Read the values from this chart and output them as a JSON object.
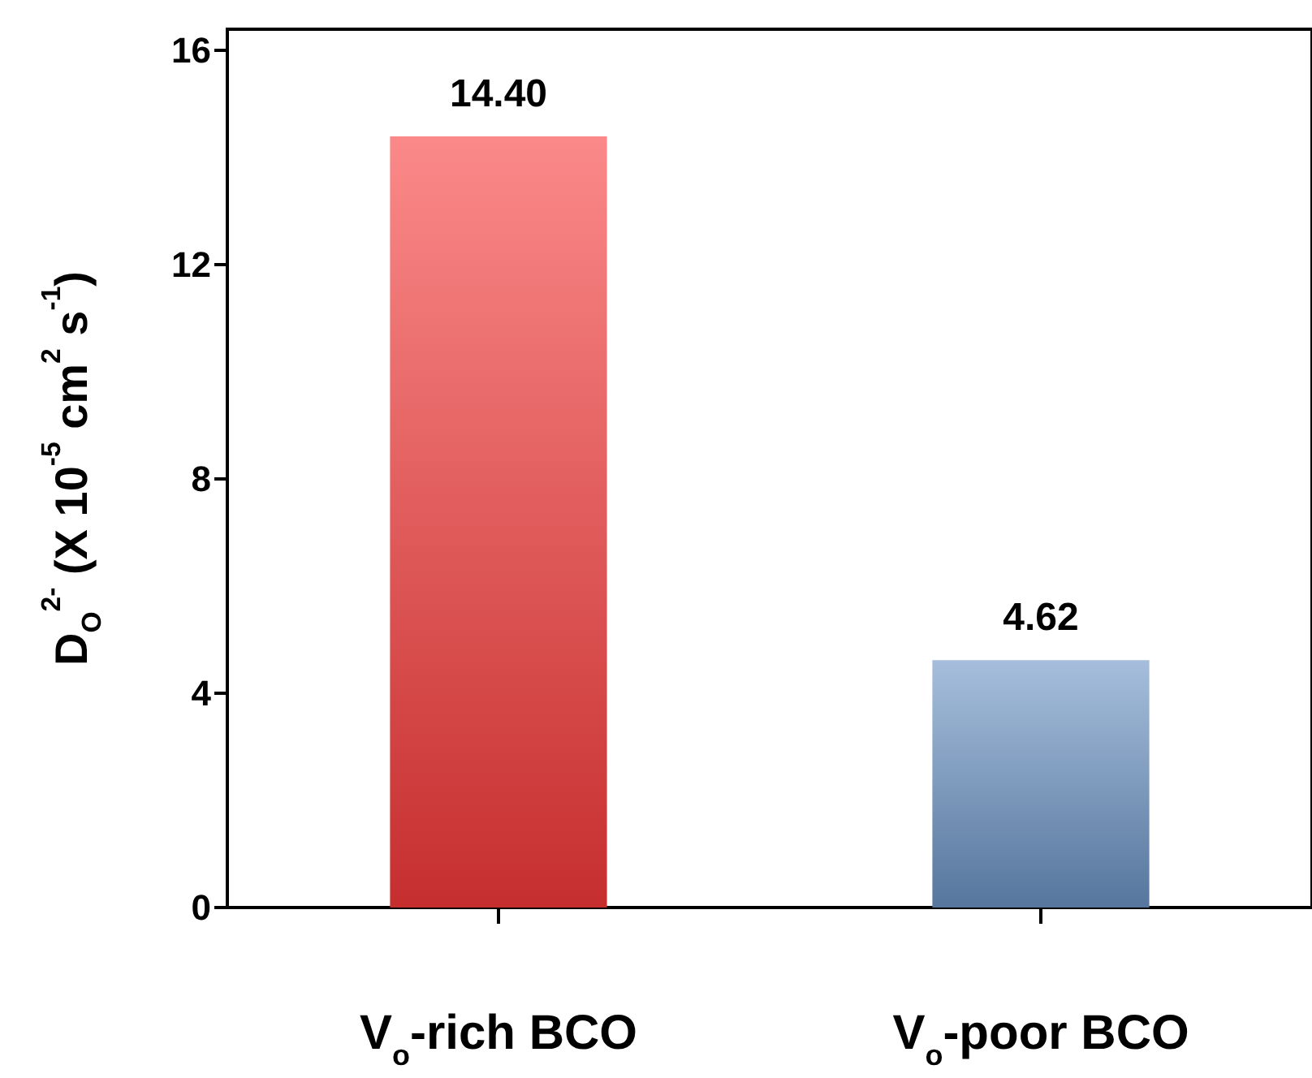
{
  "chart_data": {
    "type": "bar",
    "ylabel": "D$_{O}$$^{2-}$ (X 10$^{-5}$ cm$^{2}$ s$^{-1}$)",
    "categories": [
      "V$_{o}$-rich BCO",
      "V$_{o}$-poor BCO"
    ],
    "values": [
      14.4,
      4.62
    ],
    "colors": [
      "#f83a3a",
      "#6b93c4"
    ],
    "value_labels": [
      "14.40",
      "4.62"
    ],
    "ylim": [
      0,
      16.4
    ],
    "yticks": [
      0,
      4,
      8,
      12,
      16
    ],
    "grid": false
  }
}
